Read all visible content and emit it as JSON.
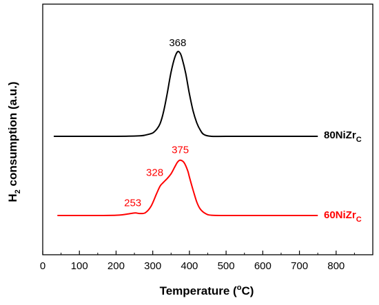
{
  "chart_data": {
    "type": "line",
    "xlabel": {
      "main": "Temperature (",
      "sup": "o",
      "tail": "C)"
    },
    "ylabel": {
      "pre": "H",
      "sub": "2",
      "post": " consumption (a.u.)"
    },
    "xlim": [
      0,
      900
    ],
    "xticks": [
      0,
      100,
      200,
      300,
      400,
      500,
      600,
      700,
      800
    ],
    "yticks_shown": false,
    "grid": false,
    "series": [
      {
        "name": {
          "main": "80NiZr",
          "sub": "C"
        },
        "color": "#000000",
        "baseline": 0.0,
        "x": [
          30,
          100,
          200,
          260,
          280,
          300,
          310,
          320,
          330,
          340,
          350,
          360,
          368,
          375,
          380,
          390,
          400,
          410,
          420,
          430,
          440,
          460,
          500,
          600,
          700,
          750
        ],
        "y": [
          0.0,
          0.0,
          0.0,
          0.005,
          0.015,
          0.04,
          0.08,
          0.15,
          0.3,
          0.52,
          0.76,
          0.93,
          1.0,
          0.98,
          0.92,
          0.74,
          0.5,
          0.3,
          0.16,
          0.07,
          0.02,
          0.0,
          0.0,
          0.0,
          0.0,
          0.0
        ],
        "peaks": [
          {
            "x": 368,
            "label": "368"
          }
        ]
      },
      {
        "name": {
          "main": "60NiZr",
          "sub": "C"
        },
        "color": "#ff0000",
        "baseline": 0.0,
        "x": [
          40,
          150,
          200,
          220,
          240,
          253,
          265,
          280,
          295,
          310,
          320,
          328,
          340,
          350,
          360,
          368,
          375,
          385,
          395,
          400,
          410,
          420,
          430,
          445,
          460,
          500,
          600,
          700,
          750
        ],
        "y": [
          0.0,
          0.0,
          0.005,
          0.015,
          0.035,
          0.045,
          0.035,
          0.05,
          0.16,
          0.38,
          0.52,
          0.58,
          0.66,
          0.74,
          0.86,
          0.95,
          0.98,
          0.94,
          0.8,
          0.68,
          0.45,
          0.24,
          0.11,
          0.03,
          0.005,
          0.0,
          0.0,
          0.0,
          0.0
        ],
        "peaks": [
          {
            "x": 253,
            "label": "253"
          },
          {
            "x": 328,
            "label": "328"
          },
          {
            "x": 375,
            "label": "375"
          }
        ]
      }
    ]
  }
}
